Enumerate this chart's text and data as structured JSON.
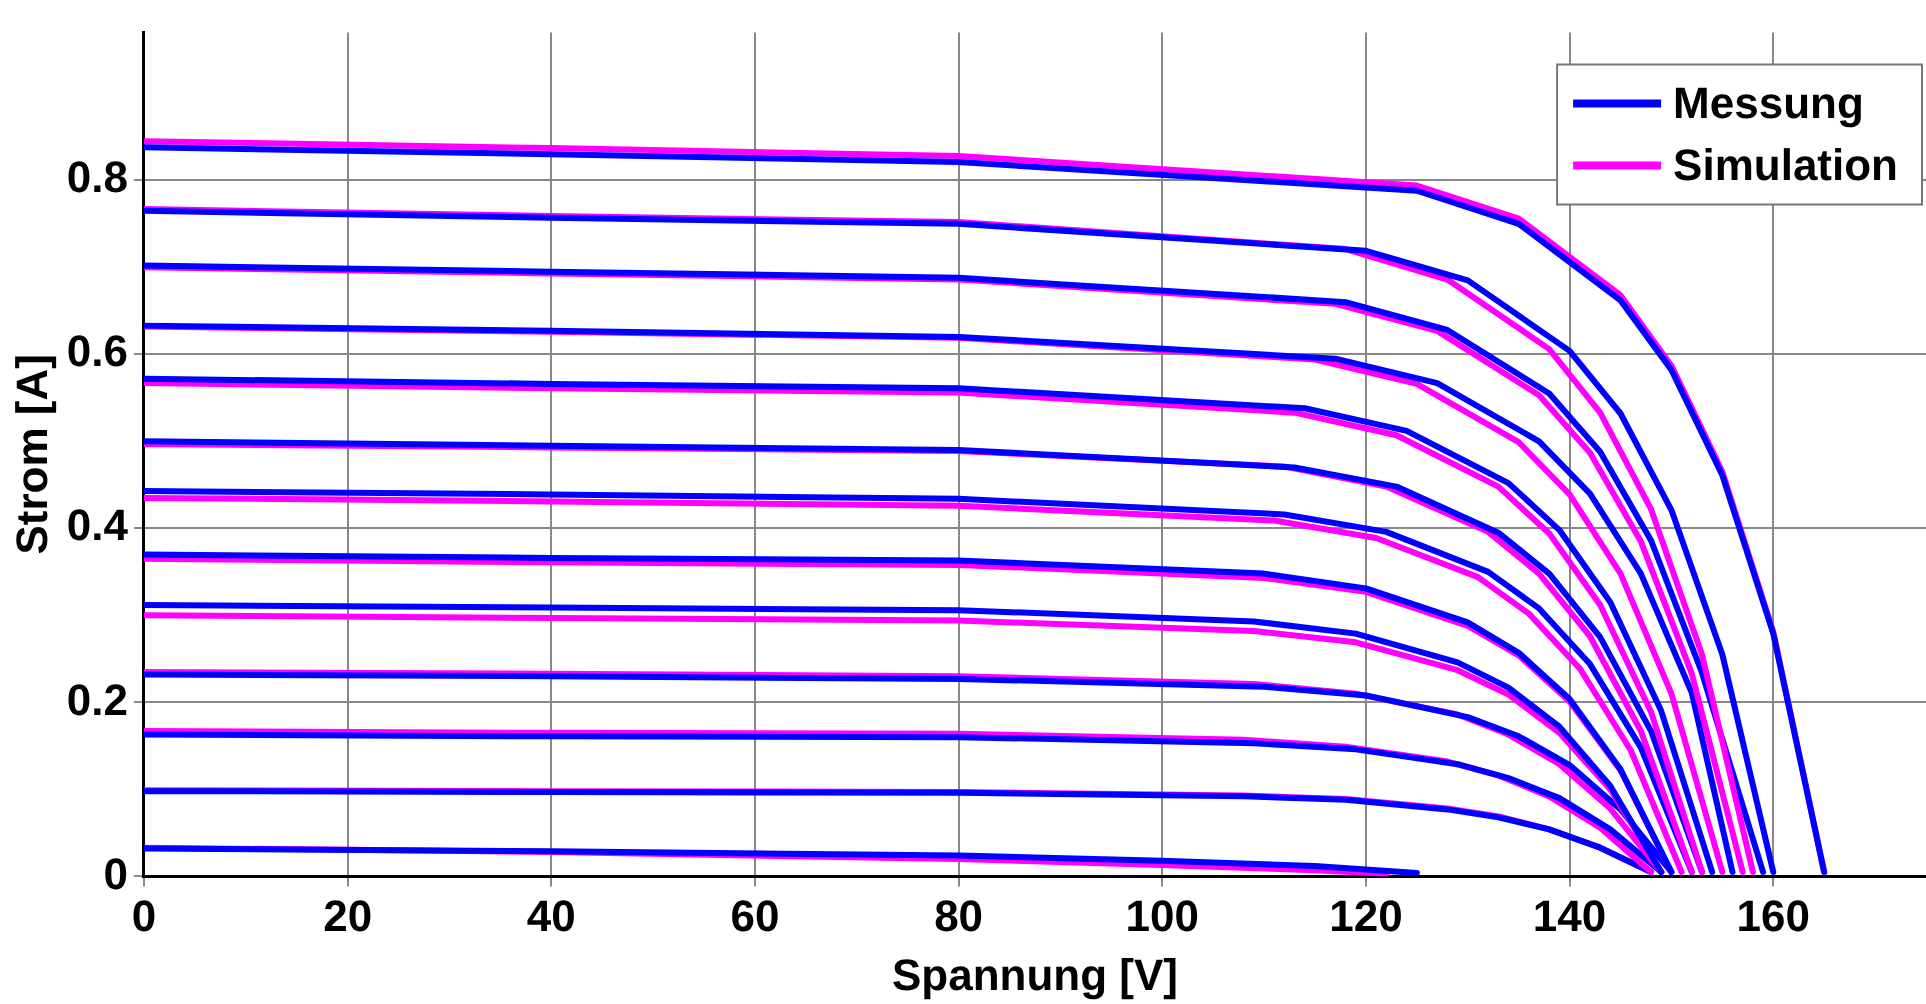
{
  "chart_data": {
    "type": "line",
    "xlabel": "Spannung [V]",
    "ylabel": "Strom [A]",
    "xlim": [
      0,
      175
    ],
    "ylim": [
      0,
      0.97
    ],
    "xticks": [
      0,
      20,
      40,
      60,
      80,
      100,
      120,
      140,
      160
    ],
    "yticks": [
      0,
      0.2,
      0.4,
      0.6,
      0.8
    ],
    "grid": true,
    "legend": "top right",
    "marker": "none",
    "line_style": "solid",
    "series": [
      {
        "name": "Messung",
        "color": "#0000ff",
        "x": [
          0,
          40,
          80,
          125,
          135,
          145,
          150,
          155,
          160,
          165
        ],
        "values": [
          0.838,
          0.83,
          0.821,
          0.788,
          0.75,
          0.662,
          0.582,
          0.461,
          0.279,
          0.005
        ]
      },
      {
        "name": "Simulation",
        "color": "#ff00ff",
        "x": [
          0,
          40,
          80,
          125,
          135,
          145,
          150,
          155,
          160,
          165
        ],
        "values": [
          0.845,
          0.837,
          0.828,
          0.794,
          0.756,
          0.668,
          0.587,
          0.465,
          0.281,
          0.005
        ]
      },
      {
        "color": "#0000ff",
        "x": [
          0,
          40,
          80,
          120,
          130,
          140,
          145,
          150,
          155,
          160
        ],
        "values": [
          0.765,
          0.757,
          0.75,
          0.719,
          0.685,
          0.604,
          0.532,
          0.421,
          0.255,
          0.005
        ]
      },
      {
        "color": "#ff00ff",
        "x": [
          0,
          40,
          80,
          118,
          128,
          138,
          143,
          148,
          153,
          158
        ],
        "values": [
          0.767,
          0.759,
          0.752,
          0.721,
          0.686,
          0.606,
          0.533,
          0.422,
          0.255,
          0.005
        ]
      },
      {
        "color": "#0000ff",
        "x": [
          0,
          40,
          80,
          118,
          128,
          138,
          143,
          148,
          153,
          159
        ],
        "values": [
          0.702,
          0.695,
          0.688,
          0.66,
          0.628,
          0.555,
          0.488,
          0.386,
          0.234,
          0.005
        ]
      },
      {
        "color": "#ff00ff",
        "x": [
          0,
          40,
          80,
          117,
          127,
          137,
          142,
          147,
          152,
          157
        ],
        "values": [
          0.7,
          0.693,
          0.686,
          0.658,
          0.627,
          0.553,
          0.487,
          0.385,
          0.233,
          0.005
        ]
      },
      {
        "color": "#0000ff",
        "x": [
          0,
          40,
          80,
          117,
          127,
          137,
          142,
          147,
          152,
          156
        ],
        "values": [
          0.633,
          0.627,
          0.62,
          0.595,
          0.567,
          0.5,
          0.44,
          0.348,
          0.211,
          0.005
        ]
      },
      {
        "color": "#ff00ff",
        "x": [
          0,
          40,
          80,
          115,
          125,
          135,
          140,
          145,
          150,
          155
        ],
        "values": [
          0.632,
          0.626,
          0.619,
          0.594,
          0.566,
          0.499,
          0.439,
          0.348,
          0.21,
          0.005
        ]
      },
      {
        "color": "#0000ff",
        "x": [
          0,
          40,
          80,
          114,
          124,
          134,
          139,
          144,
          149,
          154
        ],
        "values": [
          0.572,
          0.566,
          0.561,
          0.538,
          0.512,
          0.452,
          0.398,
          0.315,
          0.19,
          0.005
        ]
      },
      {
        "color": "#ff00ff",
        "x": [
          0,
          40,
          80,
          113,
          123,
          133,
          138,
          143,
          148,
          153
        ],
        "values": [
          0.567,
          0.561,
          0.556,
          0.533,
          0.507,
          0.448,
          0.394,
          0.312,
          0.189,
          0.005
        ]
      },
      {
        "color": "#0000ff",
        "x": [
          0,
          40,
          80,
          113,
          123,
          133,
          138,
          143,
          148,
          153
        ],
        "values": [
          0.5,
          0.495,
          0.49,
          0.47,
          0.448,
          0.395,
          0.348,
          0.275,
          0.167,
          0.005
        ]
      },
      {
        "color": "#ff00ff",
        "x": [
          0,
          40,
          80,
          112,
          122,
          132,
          137,
          142,
          147,
          152
        ],
        "values": [
          0.497,
          0.493,
          0.489,
          0.471,
          0.448,
          0.396,
          0.348,
          0.276,
          0.167,
          0.005
        ]
      },
      {
        "color": "#0000ff",
        "x": [
          0,
          40,
          80,
          112,
          122,
          132,
          137,
          142,
          147,
          152
        ],
        "values": [
          0.443,
          0.439,
          0.434,
          0.416,
          0.396,
          0.35,
          0.308,
          0.244,
          0.148,
          0.005
        ]
      },
      {
        "color": "#ff00ff",
        "x": [
          0,
          40,
          80,
          111,
          121,
          131,
          136,
          141,
          146,
          151
        ],
        "values": [
          0.435,
          0.431,
          0.426,
          0.409,
          0.389,
          0.344,
          0.302,
          0.239,
          0.145,
          0.005
        ]
      },
      {
        "color": "#0000ff",
        "x": [
          0,
          40,
          80,
          110,
          120,
          130,
          135,
          140,
          145,
          150
        ],
        "values": [
          0.37,
          0.366,
          0.363,
          0.348,
          0.331,
          0.292,
          0.257,
          0.204,
          0.123,
          0.005
        ]
      },
      {
        "color": "#ff00ff",
        "x": [
          0,
          40,
          80,
          110,
          120,
          130,
          135,
          140,
          145,
          150
        ],
        "values": [
          0.365,
          0.361,
          0.358,
          0.343,
          0.327,
          0.288,
          0.254,
          0.201,
          0.122,
          0.005
        ]
      },
      {
        "color": "#0000ff",
        "x": [
          0,
          40,
          80,
          109,
          119,
          129,
          134,
          139,
          144,
          149
        ],
        "values": [
          0.312,
          0.309,
          0.306,
          0.293,
          0.279,
          0.246,
          0.217,
          0.172,
          0.104,
          0.005
        ]
      },
      {
        "color": "#ff00ff",
        "x": [
          0,
          40,
          80,
          109,
          119,
          129,
          134,
          139,
          144,
          149
        ],
        "values": [
          0.3,
          0.297,
          0.294,
          0.282,
          0.269,
          0.237,
          0.209,
          0.165,
          0.1,
          0.005
        ]
      },
      {
        "color": "#0000ff",
        "x": [
          0,
          40,
          80,
          110,
          120,
          130,
          135,
          140,
          145,
          150
        ],
        "values": [
          0.232,
          0.23,
          0.227,
          0.218,
          0.208,
          0.183,
          0.161,
          0.128,
          0.077,
          0.005
        ]
      },
      {
        "color": "#ff00ff",
        "x": [
          0,
          40,
          80,
          109,
          119,
          129,
          134,
          139,
          144,
          149
        ],
        "values": [
          0.235,
          0.233,
          0.23,
          0.221,
          0.21,
          0.186,
          0.163,
          0.129,
          0.078,
          0.005
        ]
      },
      {
        "color": "#0000ff",
        "x": [
          0,
          40,
          80,
          109,
          119,
          129,
          134,
          139,
          144,
          149
        ],
        "values": [
          0.163,
          0.161,
          0.16,
          0.153,
          0.146,
          0.129,
          0.113,
          0.09,
          0.054,
          0.005
        ]
      },
      {
        "color": "#ff00ff",
        "x": [
          0,
          40,
          80,
          108,
          118,
          128,
          133,
          138,
          143,
          148
        ],
        "values": [
          0.167,
          0.165,
          0.164,
          0.157,
          0.149,
          0.132,
          0.116,
          0.092,
          0.056,
          0.005
        ]
      },
      {
        "color": "#0000ff",
        "x": [
          0,
          40,
          80,
          108,
          118,
          128,
          133,
          138,
          143,
          148
        ],
        "values": [
          0.098,
          0.097,
          0.096,
          0.092,
          0.088,
          0.077,
          0.068,
          0.054,
          0.033,
          0.005
        ]
      },
      {
        "color": "#ff00ff",
        "x": [
          0,
          40,
          80,
          108,
          118,
          128,
          133,
          138,
          143,
          148
        ],
        "values": [
          0.099,
          0.098,
          0.097,
          0.093,
          0.089,
          0.078,
          0.069,
          0.054,
          0.033,
          0.005
        ]
      },
      {
        "color": "#0000ff",
        "x": [
          0,
          40,
          80,
          100,
          115,
          125
        ],
        "values": [
          0.032,
          0.029,
          0.024,
          0.018,
          0.012,
          0.004
        ]
      },
      {
        "color": "#ff00ff",
        "x": [
          0,
          40,
          80,
          100,
          115,
          122
        ],
        "values": [
          0.033,
          0.028,
          0.02,
          0.013,
          0.007,
          0.003
        ]
      }
    ]
  }
}
